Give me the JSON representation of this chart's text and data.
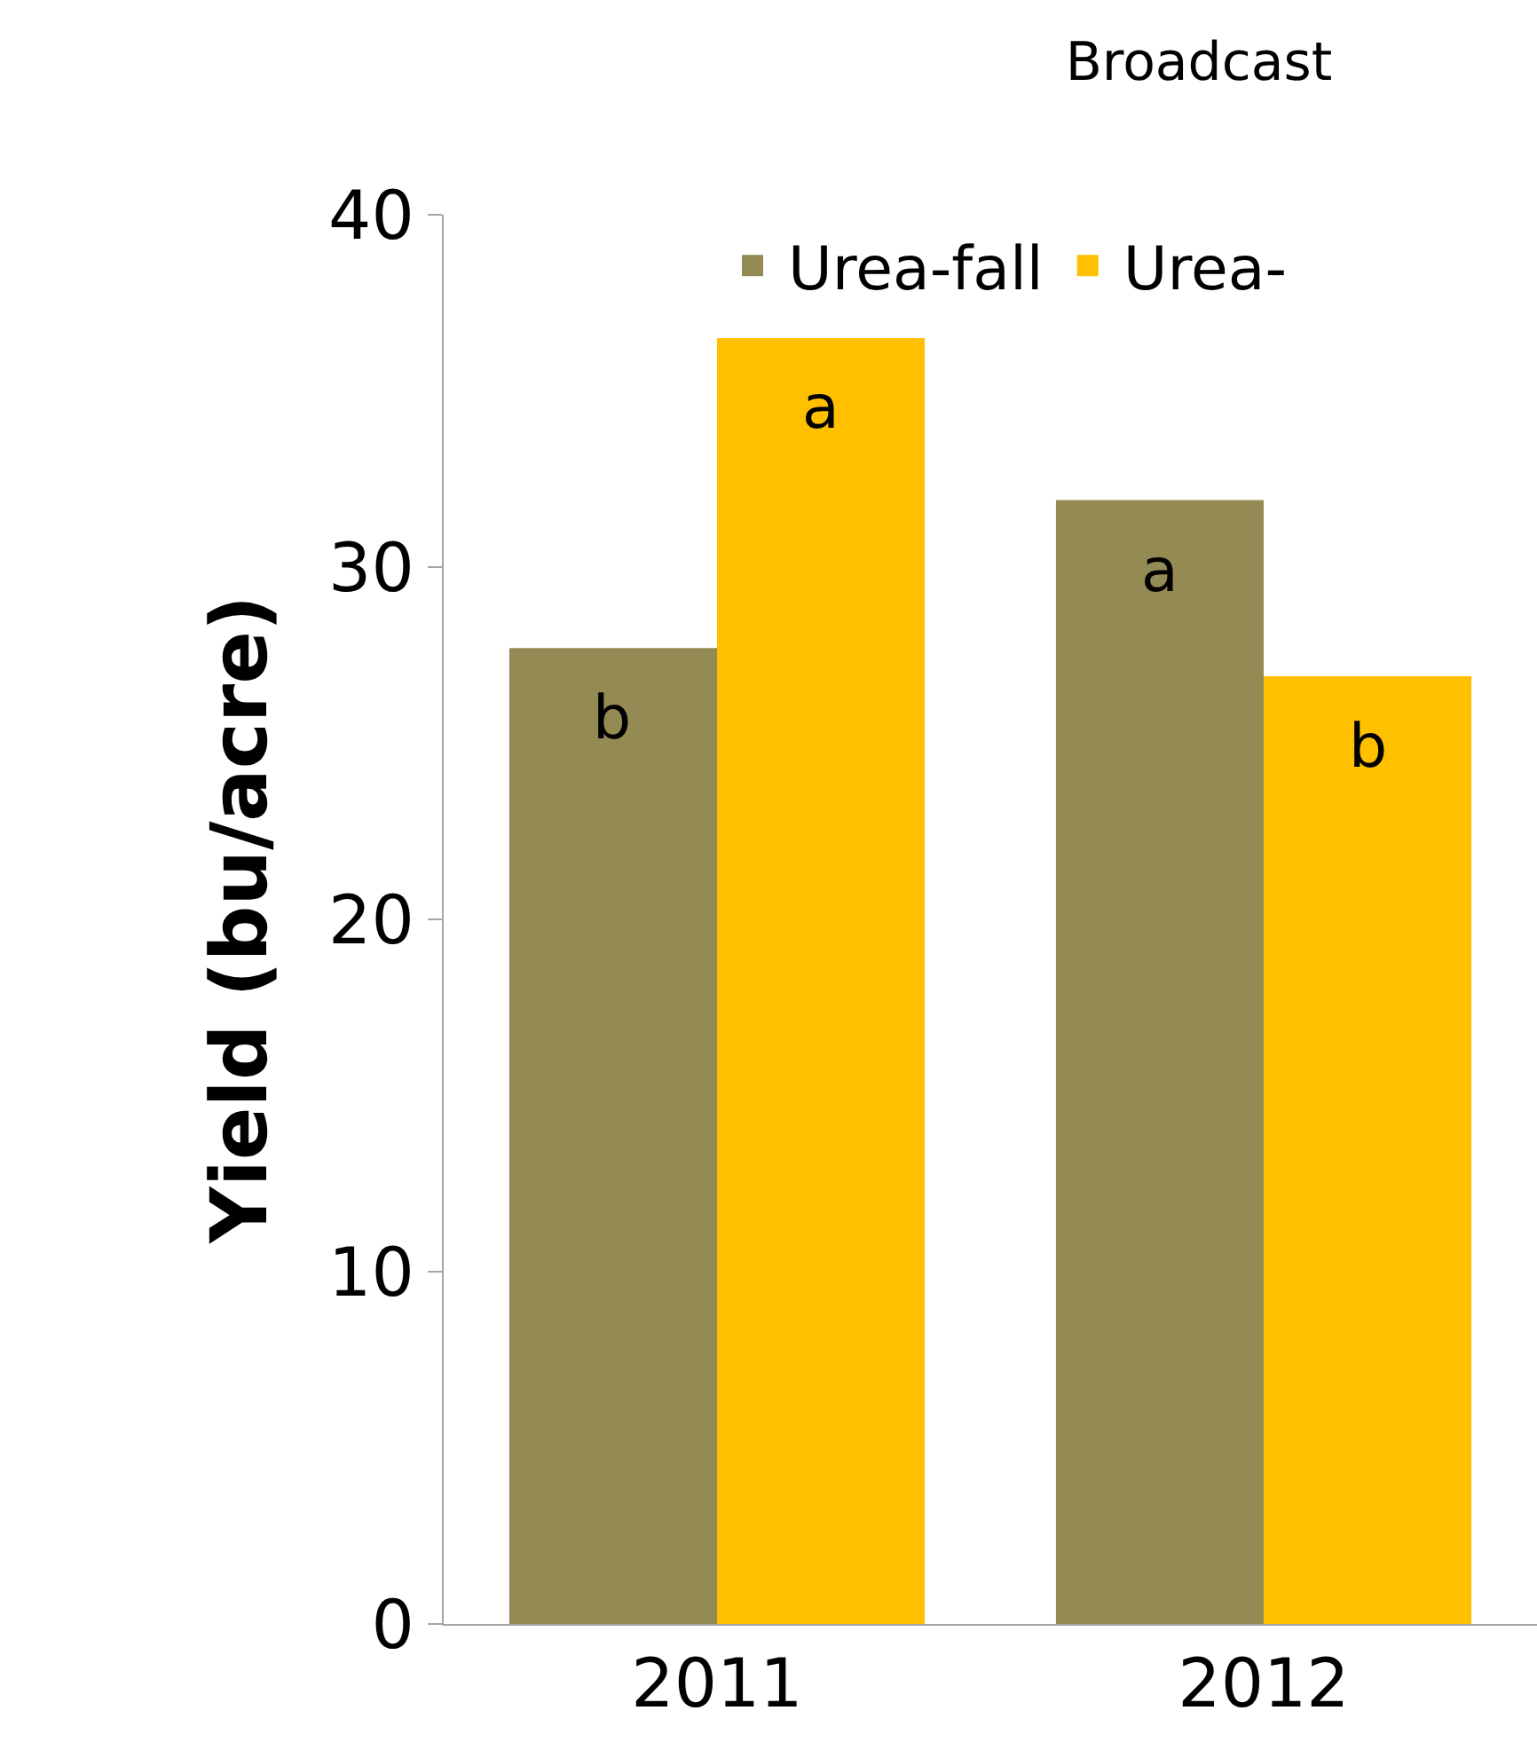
{
  "chart_data": {
    "type": "bar",
    "title": "Broadcast",
    "ylabel": "Yield (bu/acre)",
    "categories": [
      "2011",
      "2012"
    ],
    "series": [
      {
        "name": "Urea-fall",
        "color": "#948a54",
        "values": [
          27.7,
          31.9
        ]
      },
      {
        "name": "Urea-",
        "color": "#ffc000",
        "values": [
          36.5,
          26.9
        ]
      }
    ],
    "ylim": [
      0,
      40
    ],
    "yticks": [
      0,
      10,
      20,
      30,
      40
    ],
    "grid": false,
    "legend": "top right",
    "annotations": [
      {
        "text": "b",
        "x": "2011",
        "y": 27.7
      },
      {
        "text": "a",
        "x": "2011",
        "y": 36.5
      },
      {
        "text": "a",
        "x": "2012",
        "y": 31.9
      },
      {
        "text": "b",
        "x": "2012",
        "y": 26.9
      }
    ]
  }
}
